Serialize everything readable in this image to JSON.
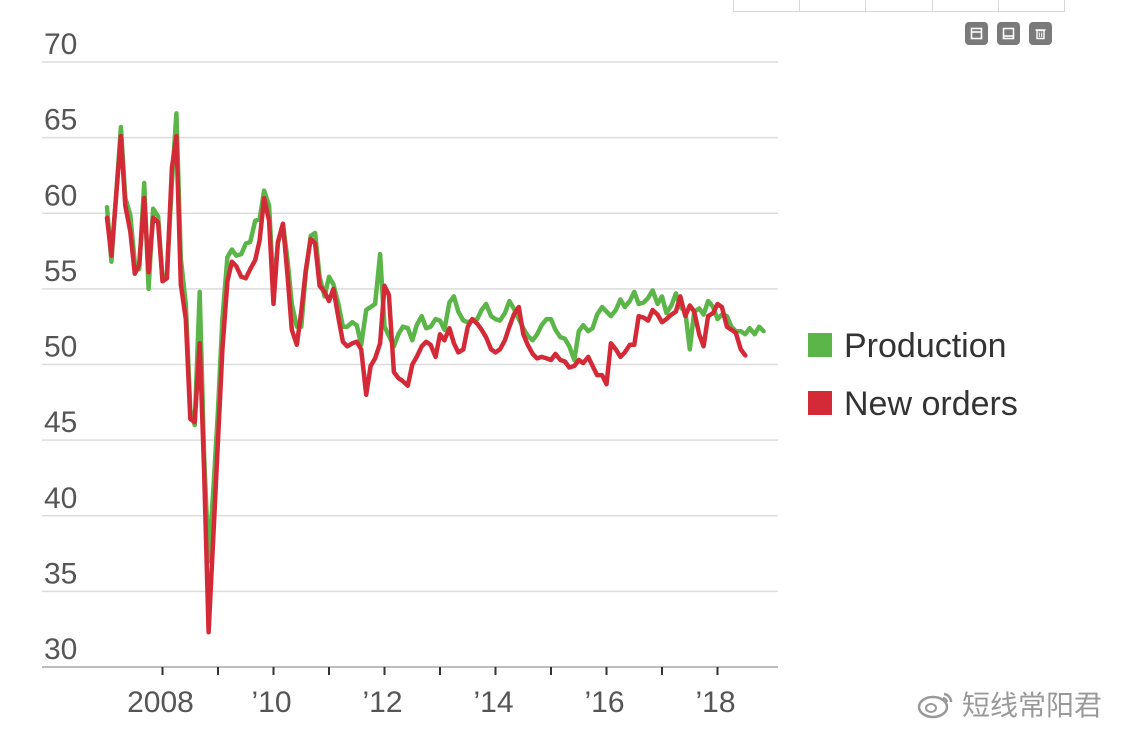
{
  "toolbar": {
    "buttons": [
      {
        "name": "restore-icon"
      },
      {
        "name": "window-icon"
      },
      {
        "name": "trash-icon"
      }
    ]
  },
  "watermark": {
    "text": "短线常阳君",
    "icon": "weibo-icon"
  },
  "chart_data": {
    "type": "line",
    "title": "",
    "xlabel": "",
    "ylabel": "",
    "ylim": [
      30,
      70
    ],
    "yticks": [
      30,
      35,
      40,
      45,
      50,
      55,
      60,
      65,
      70
    ],
    "xlim": [
      2007.0,
      2019.0
    ],
    "xtick_labels": [
      {
        "x": 2008,
        "label": "2008"
      },
      {
        "x": 2010,
        "label": "’10"
      },
      {
        "x": 2012,
        "label": "’12"
      },
      {
        "x": 2014,
        "label": "’14"
      },
      {
        "x": 2016,
        "label": "’16"
      },
      {
        "x": 2018,
        "label": "’18"
      }
    ],
    "minor_ticks": [
      2009,
      2011,
      2013,
      2015,
      2017
    ],
    "grid": "horizontal",
    "legend_position": "right",
    "series": [
      {
        "name": "Production",
        "color": "#5bb548",
        "points": [
          [
            2007.0,
            60.4
          ],
          [
            2007.08,
            56.8
          ],
          [
            2007.25,
            65.7
          ],
          [
            2007.33,
            61.0
          ],
          [
            2007.42,
            59.9
          ],
          [
            2007.5,
            56.7
          ],
          [
            2007.58,
            56.3
          ],
          [
            2007.67,
            62.0
          ],
          [
            2007.75,
            55.0
          ],
          [
            2007.83,
            60.3
          ],
          [
            2007.92,
            59.8
          ],
          [
            2008.0,
            55.7
          ],
          [
            2008.08,
            56.0
          ],
          [
            2008.17,
            62.0
          ],
          [
            2008.25,
            66.6
          ],
          [
            2008.33,
            57.0
          ],
          [
            2008.42,
            54.0
          ],
          [
            2008.5,
            47.0
          ],
          [
            2008.58,
            46.0
          ],
          [
            2008.67,
            54.8
          ],
          [
            2008.75,
            44.0
          ],
          [
            2008.83,
            37.0
          ],
          [
            2008.92,
            42.0
          ],
          [
            2009.0,
            47.0
          ],
          [
            2009.08,
            53.0
          ],
          [
            2009.17,
            57.1
          ],
          [
            2009.25,
            57.6
          ],
          [
            2009.33,
            57.2
          ],
          [
            2009.42,
            57.3
          ],
          [
            2009.5,
            58.0
          ],
          [
            2009.58,
            58.1
          ],
          [
            2009.67,
            59.5
          ],
          [
            2009.75,
            59.6
          ],
          [
            2009.83,
            61.5
          ],
          [
            2009.92,
            60.5
          ],
          [
            2010.0,
            55.0
          ],
          [
            2010.08,
            58.0
          ],
          [
            2010.17,
            59.3
          ],
          [
            2010.25,
            57.0
          ],
          [
            2010.33,
            54.0
          ],
          [
            2010.42,
            52.5
          ],
          [
            2010.5,
            52.5
          ],
          [
            2010.58,
            56.0
          ],
          [
            2010.67,
            58.5
          ],
          [
            2010.75,
            58.7
          ],
          [
            2010.83,
            55.8
          ],
          [
            2010.92,
            54.5
          ],
          [
            2011.0,
            55.8
          ],
          [
            2011.08,
            55.3
          ],
          [
            2011.17,
            54.0
          ],
          [
            2011.25,
            52.5
          ],
          [
            2011.33,
            52.5
          ],
          [
            2011.42,
            52.8
          ],
          [
            2011.5,
            52.6
          ],
          [
            2011.58,
            51.3
          ],
          [
            2011.67,
            53.6
          ],
          [
            2011.75,
            53.8
          ],
          [
            2011.83,
            54.0
          ],
          [
            2011.92,
            57.3
          ],
          [
            2012.0,
            52.5
          ],
          [
            2012.08,
            51.9
          ],
          [
            2012.17,
            51.2
          ],
          [
            2012.25,
            52.0
          ],
          [
            2012.33,
            52.5
          ],
          [
            2012.42,
            52.4
          ],
          [
            2012.5,
            51.6
          ],
          [
            2012.58,
            52.6
          ],
          [
            2012.67,
            53.2
          ],
          [
            2012.75,
            52.4
          ],
          [
            2012.83,
            52.5
          ],
          [
            2012.92,
            53.0
          ],
          [
            2013.0,
            52.9
          ],
          [
            2013.08,
            52.3
          ],
          [
            2013.17,
            54.1
          ],
          [
            2013.25,
            54.5
          ],
          [
            2013.33,
            53.5
          ],
          [
            2013.42,
            52.9
          ],
          [
            2013.5,
            52.8
          ],
          [
            2013.58,
            52.9
          ],
          [
            2013.67,
            53.0
          ],
          [
            2013.75,
            53.6
          ],
          [
            2013.83,
            54.0
          ],
          [
            2013.92,
            53.2
          ],
          [
            2014.0,
            53.0
          ],
          [
            2014.08,
            52.9
          ],
          [
            2014.17,
            53.4
          ],
          [
            2014.25,
            54.2
          ],
          [
            2014.33,
            53.7
          ],
          [
            2014.42,
            53.0
          ],
          [
            2014.5,
            52.4
          ],
          [
            2014.58,
            51.9
          ],
          [
            2014.67,
            51.6
          ],
          [
            2014.75,
            52.0
          ],
          [
            2014.83,
            52.6
          ],
          [
            2014.92,
            53.0
          ],
          [
            2015.0,
            53.0
          ],
          [
            2015.08,
            52.3
          ],
          [
            2015.17,
            51.8
          ],
          [
            2015.25,
            51.7
          ],
          [
            2015.33,
            51.2
          ],
          [
            2015.42,
            50.3
          ],
          [
            2015.5,
            52.2
          ],
          [
            2015.58,
            52.6
          ],
          [
            2015.67,
            52.2
          ],
          [
            2015.75,
            52.4
          ],
          [
            2015.83,
            53.3
          ],
          [
            2015.92,
            53.8
          ],
          [
            2016.0,
            53.5
          ],
          [
            2016.08,
            53.2
          ],
          [
            2016.17,
            53.6
          ],
          [
            2016.25,
            54.3
          ],
          [
            2016.33,
            53.8
          ],
          [
            2016.42,
            54.2
          ],
          [
            2016.5,
            54.8
          ],
          [
            2016.58,
            54.0
          ],
          [
            2016.67,
            54.1
          ],
          [
            2016.75,
            54.4
          ],
          [
            2016.83,
            54.9
          ],
          [
            2016.92,
            54.0
          ],
          [
            2017.0,
            54.5
          ],
          [
            2017.08,
            53.4
          ],
          [
            2017.17,
            53.9
          ],
          [
            2017.25,
            54.7
          ],
          [
            2017.33,
            53.8
          ],
          [
            2017.42,
            53.5
          ],
          [
            2017.5,
            51.0
          ],
          [
            2017.58,
            53.5
          ],
          [
            2017.67,
            53.7
          ],
          [
            2017.75,
            53.3
          ],
          [
            2017.83,
            54.2
          ],
          [
            2017.92,
            53.8
          ],
          [
            2018.0,
            53.0
          ],
          [
            2018.08,
            53.3
          ],
          [
            2018.17,
            53.2
          ],
          [
            2018.25,
            52.5
          ],
          [
            2018.33,
            52.2
          ],
          [
            2018.42,
            52.2
          ],
          [
            2018.5,
            52.0
          ],
          [
            2018.58,
            52.4
          ],
          [
            2018.67,
            52.0
          ],
          [
            2018.75,
            52.5
          ],
          [
            2018.83,
            52.2
          ]
        ]
      },
      {
        "name": "New orders",
        "color": "#d42a37",
        "points": [
          [
            2007.0,
            59.7
          ],
          [
            2007.08,
            57.2
          ],
          [
            2007.25,
            65.1
          ],
          [
            2007.33,
            60.5
          ],
          [
            2007.42,
            58.8
          ],
          [
            2007.5,
            56.0
          ],
          [
            2007.58,
            56.6
          ],
          [
            2007.67,
            61.0
          ],
          [
            2007.75,
            56.1
          ],
          [
            2007.83,
            59.7
          ],
          [
            2007.92,
            59.4
          ],
          [
            2008.0,
            55.5
          ],
          [
            2008.08,
            55.7
          ],
          [
            2008.17,
            63.0
          ],
          [
            2008.25,
            65.1
          ],
          [
            2008.33,
            55.3
          ],
          [
            2008.42,
            53.0
          ],
          [
            2008.5,
            46.4
          ],
          [
            2008.58,
            46.2
          ],
          [
            2008.67,
            51.4
          ],
          [
            2008.75,
            43.0
          ],
          [
            2008.83,
            32.3
          ],
          [
            2008.92,
            39.0
          ],
          [
            2009.0,
            45.0
          ],
          [
            2009.08,
            51.0
          ],
          [
            2009.17,
            55.5
          ],
          [
            2009.25,
            56.8
          ],
          [
            2009.33,
            56.5
          ],
          [
            2009.42,
            55.8
          ],
          [
            2009.5,
            55.7
          ],
          [
            2009.58,
            56.3
          ],
          [
            2009.67,
            56.9
          ],
          [
            2009.75,
            58.2
          ],
          [
            2009.83,
            61.0
          ],
          [
            2009.92,
            59.5
          ],
          [
            2010.0,
            54.0
          ],
          [
            2010.08,
            58.1
          ],
          [
            2010.17,
            59.3
          ],
          [
            2010.25,
            56.0
          ],
          [
            2010.33,
            52.3
          ],
          [
            2010.42,
            51.3
          ],
          [
            2010.5,
            53.5
          ],
          [
            2010.58,
            56.2
          ],
          [
            2010.67,
            58.3
          ],
          [
            2010.75,
            58.0
          ],
          [
            2010.83,
            55.2
          ],
          [
            2010.92,
            54.8
          ],
          [
            2011.0,
            54.2
          ],
          [
            2011.08,
            55.0
          ],
          [
            2011.17,
            53.1
          ],
          [
            2011.25,
            51.5
          ],
          [
            2011.33,
            51.2
          ],
          [
            2011.42,
            51.4
          ],
          [
            2011.5,
            51.5
          ],
          [
            2011.58,
            51.0
          ],
          [
            2011.67,
            48.0
          ],
          [
            2011.75,
            49.9
          ],
          [
            2011.83,
            50.4
          ],
          [
            2011.92,
            51.4
          ],
          [
            2012.0,
            55.2
          ],
          [
            2012.08,
            54.6
          ],
          [
            2012.17,
            49.5
          ],
          [
            2012.25,
            49.1
          ],
          [
            2012.33,
            48.9
          ],
          [
            2012.42,
            48.6
          ],
          [
            2012.5,
            50.0
          ],
          [
            2012.58,
            50.5
          ],
          [
            2012.67,
            51.2
          ],
          [
            2012.75,
            51.5
          ],
          [
            2012.83,
            51.3
          ],
          [
            2012.92,
            50.5
          ],
          [
            2013.0,
            52.0
          ],
          [
            2013.08,
            51.6
          ],
          [
            2013.17,
            52.4
          ],
          [
            2013.25,
            51.4
          ],
          [
            2013.33,
            50.8
          ],
          [
            2013.42,
            51.0
          ],
          [
            2013.5,
            52.5
          ],
          [
            2013.58,
            53.0
          ],
          [
            2013.67,
            52.7
          ],
          [
            2013.75,
            52.3
          ],
          [
            2013.83,
            51.8
          ],
          [
            2013.92,
            51.0
          ],
          [
            2014.0,
            50.8
          ],
          [
            2014.08,
            51.0
          ],
          [
            2014.17,
            51.6
          ],
          [
            2014.25,
            52.5
          ],
          [
            2014.33,
            53.3
          ],
          [
            2014.42,
            53.8
          ],
          [
            2014.5,
            52.0
          ],
          [
            2014.58,
            51.3
          ],
          [
            2014.67,
            50.7
          ],
          [
            2014.75,
            50.4
          ],
          [
            2014.83,
            50.5
          ],
          [
            2014.92,
            50.4
          ],
          [
            2015.0,
            50.3
          ],
          [
            2015.08,
            50.7
          ],
          [
            2015.17,
            50.3
          ],
          [
            2015.25,
            50.2
          ],
          [
            2015.33,
            49.8
          ],
          [
            2015.42,
            49.9
          ],
          [
            2015.5,
            50.3
          ],
          [
            2015.58,
            50.1
          ],
          [
            2015.67,
            50.5
          ],
          [
            2015.75,
            49.9
          ],
          [
            2015.83,
            49.3
          ],
          [
            2015.92,
            49.3
          ],
          [
            2016.0,
            48.7
          ],
          [
            2016.08,
            51.4
          ],
          [
            2016.17,
            51.0
          ],
          [
            2016.25,
            50.5
          ],
          [
            2016.33,
            50.8
          ],
          [
            2016.42,
            51.3
          ],
          [
            2016.5,
            51.3
          ],
          [
            2016.58,
            53.2
          ],
          [
            2016.67,
            53.1
          ],
          [
            2016.75,
            52.9
          ],
          [
            2016.83,
            53.6
          ],
          [
            2016.92,
            53.3
          ],
          [
            2017.0,
            52.8
          ],
          [
            2017.08,
            53.0
          ],
          [
            2017.17,
            53.3
          ],
          [
            2017.25,
            53.5
          ],
          [
            2017.33,
            54.5
          ],
          [
            2017.42,
            53.2
          ],
          [
            2017.5,
            53.9
          ],
          [
            2017.58,
            53.5
          ],
          [
            2017.67,
            52.0
          ],
          [
            2017.75,
            51.2
          ],
          [
            2017.83,
            53.2
          ],
          [
            2017.92,
            53.4
          ],
          [
            2018.0,
            54.0
          ],
          [
            2018.08,
            53.8
          ],
          [
            2018.17,
            52.5
          ],
          [
            2018.25,
            52.3
          ],
          [
            2018.33,
            52.1
          ],
          [
            2018.42,
            51.0
          ],
          [
            2018.5,
            50.6
          ]
        ]
      }
    ]
  }
}
